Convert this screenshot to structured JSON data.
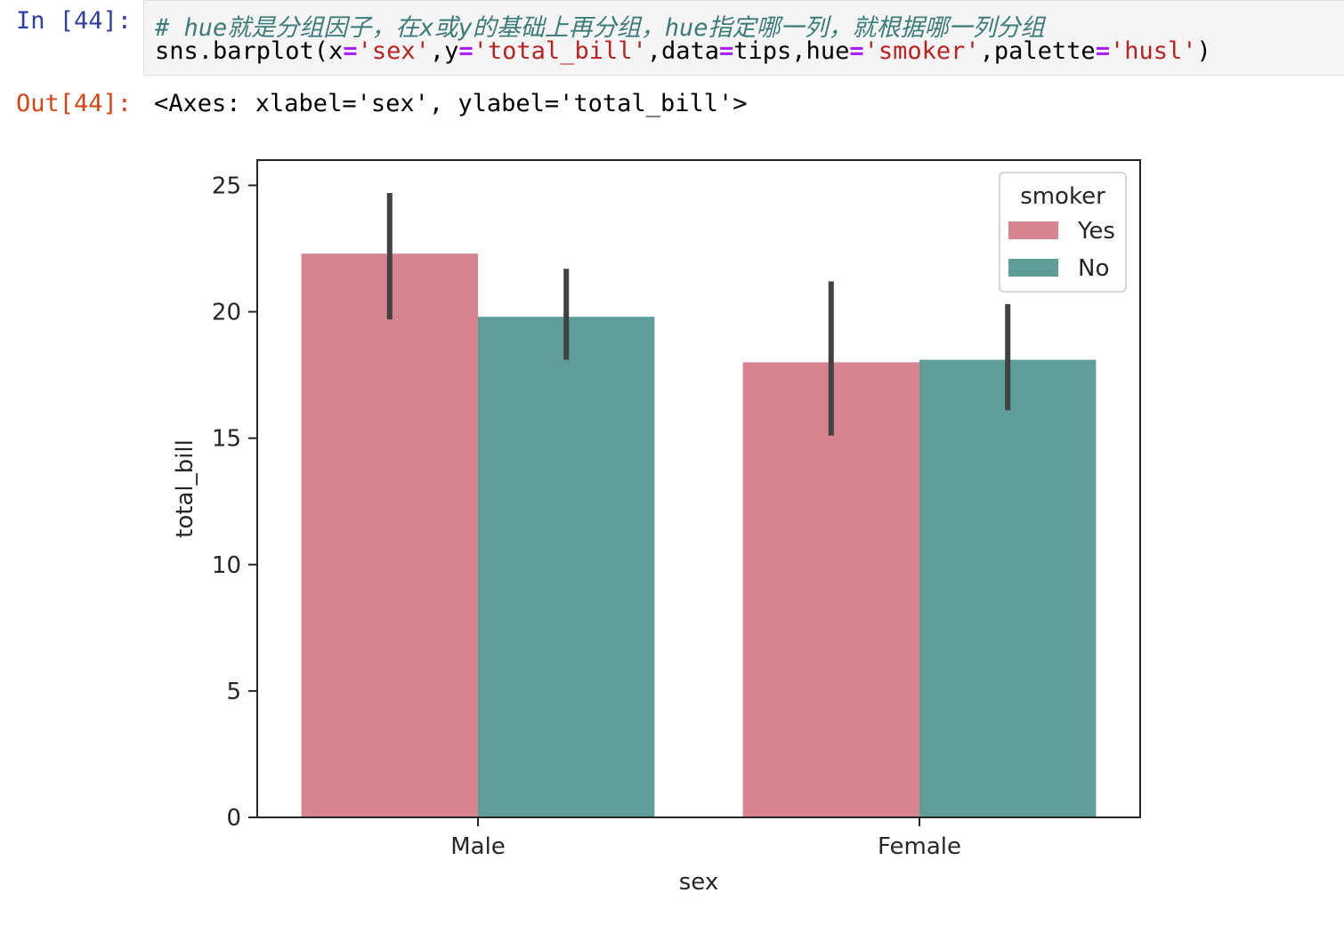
{
  "cell_in": {
    "prompt": "In [44]:",
    "comment": "# hue就是分组因子，在x或y的基础上再分组，hue指定哪一列，就根据哪一列分组",
    "code_tokens": [
      {
        "t": "sns.barplot(x",
        "c": ""
      },
      {
        "t": "=",
        "c": "tok-op"
      },
      {
        "t": "'sex'",
        "c": "tok-str"
      },
      {
        "t": ",y",
        "c": ""
      },
      {
        "t": "=",
        "c": "tok-op"
      },
      {
        "t": "'total_bill'",
        "c": "tok-str"
      },
      {
        "t": ",data",
        "c": ""
      },
      {
        "t": "=",
        "c": "tok-op"
      },
      {
        "t": "tips,hue",
        "c": ""
      },
      {
        "t": "=",
        "c": "tok-op"
      },
      {
        "t": "'smoker'",
        "c": "tok-str"
      },
      {
        "t": ",palette",
        "c": ""
      },
      {
        "t": "=",
        "c": "tok-op"
      },
      {
        "t": "'husl'",
        "c": "tok-str"
      },
      {
        "t": ")",
        "c": ""
      }
    ]
  },
  "cell_out": {
    "prompt": "Out[44]:",
    "text": "<Axes: xlabel='sex', ylabel='total_bill'>"
  },
  "chart_data": {
    "type": "bar",
    "title": "",
    "xlabel": "sex",
    "ylabel": "total_bill",
    "categories": [
      "Male",
      "Female"
    ],
    "ylim": [
      0,
      26
    ],
    "yticks": [
      0,
      5,
      10,
      15,
      20,
      25
    ],
    "grid": false,
    "legend": {
      "title": "smoker",
      "placement": "top-right"
    },
    "series": [
      {
        "name": "Yes",
        "color": "#d88490",
        "values": [
          22.3,
          18.0
        ],
        "ci_low": [
          19.7,
          15.1
        ],
        "ci_high": [
          24.7,
          21.2
        ]
      },
      {
        "name": "No",
        "color": "#5f9e98",
        "values": [
          19.8,
          18.1
        ],
        "ci_low": [
          18.1,
          16.1
        ],
        "ci_high": [
          21.7,
          20.3
        ]
      }
    ]
  }
}
